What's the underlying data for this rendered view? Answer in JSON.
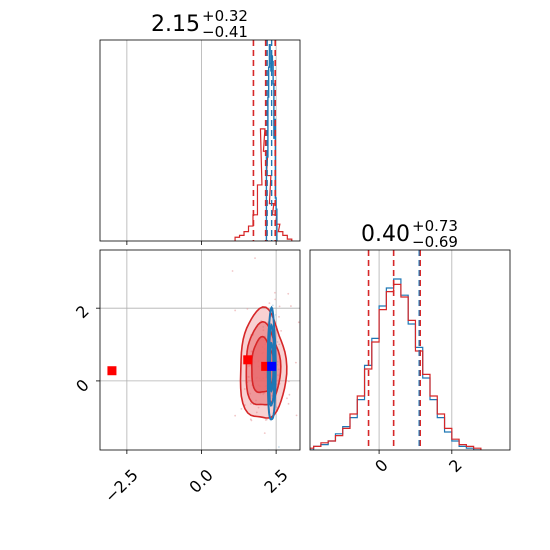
{
  "chart_data": {
    "type": "corner",
    "parameters": [
      {
        "title_main": "2.15",
        "title_plus": "+0.32",
        "title_minus": "−0.41",
        "range": [
          -3.4,
          3.3
        ],
        "ticks": [
          -2.5,
          0.0,
          2.5
        ],
        "tick_labels": [
          "−2.5",
          "0.0",
          "2.5"
        ],
        "quantile_lines": [
          1.74,
          2.15,
          2.47
        ],
        "blue_quantile_lines": [
          2.2,
          2.35
        ]
      },
      {
        "title_main": "0.40",
        "title_plus": "+0.73",
        "title_minus": "−0.69",
        "range": [
          -1.9,
          3.6
        ],
        "ticks": [
          0,
          2
        ],
        "tick_labels": [
          "0",
          "2"
        ],
        "quantile_lines": [
          -0.29,
          0.4,
          1.13
        ],
        "blue_quantile_lines": [
          1.1
        ]
      }
    ],
    "marginal_1": {
      "red_bins_x": [
        1.2,
        1.35,
        1.5,
        1.65,
        1.8,
        1.95,
        2.05,
        2.15,
        2.25,
        2.35,
        2.45,
        2.55,
        2.65,
        2.8,
        2.95
      ],
      "red_bins_h": [
        0.02,
        0.03,
        0.05,
        0.08,
        0.14,
        0.3,
        0.6,
        0.48,
        0.35,
        0.2,
        0.14,
        0.09,
        0.05,
        0.03,
        0.01
      ],
      "blue_peak_x": [
        2.2,
        2.25,
        2.3,
        2.35,
        2.4,
        2.45,
        2.5
      ],
      "blue_peak_h": [
        0.45,
        0.85,
        1.0,
        0.95,
        0.9,
        0.6,
        0.2
      ]
    },
    "marginal_2": {
      "x": [
        -1.9,
        -1.7,
        -1.5,
        -1.3,
        -1.1,
        -0.9,
        -0.7,
        -0.5,
        -0.3,
        -0.1,
        0.1,
        0.3,
        0.5,
        0.7,
        0.9,
        1.1,
        1.3,
        1.5,
        1.7,
        1.9,
        2.1,
        2.3,
        2.5,
        2.7
      ],
      "red_h": [
        0.01,
        0.02,
        0.04,
        0.05,
        0.08,
        0.12,
        0.2,
        0.3,
        0.45,
        0.6,
        0.78,
        0.88,
        0.92,
        0.85,
        0.72,
        0.55,
        0.42,
        0.3,
        0.2,
        0.12,
        0.06,
        0.03,
        0.02,
        0.01
      ],
      "blue_h": [
        0.0,
        0.02,
        0.03,
        0.05,
        0.09,
        0.13,
        0.18,
        0.28,
        0.47,
        0.62,
        0.8,
        0.9,
        0.95,
        0.86,
        0.7,
        0.57,
        0.4,
        0.28,
        0.18,
        0.1,
        0.05,
        0.02,
        0.01,
        0.0
      ]
    },
    "joint": {
      "red_center": [
        2.05,
        0.4
      ],
      "red_spread": [
        0.35,
        0.75
      ],
      "blue_center": [
        2.35,
        0.4
      ],
      "blue_spread": [
        0.07,
        0.85
      ],
      "red_markers": [
        [
          -3.0,
          0.28
        ],
        [
          1.55,
          0.58
        ],
        [
          2.15,
          0.4
        ]
      ],
      "blue_marker": [
        2.35,
        0.4
      ]
    },
    "colors": {
      "red": "#d62728",
      "red_fill": "#e8686a",
      "blue": "#1f77b4",
      "quantile_red": "#d62728",
      "marker_red": "#ff0000",
      "marker_blue": "#0000ff",
      "grid": "#b0b0b0"
    }
  }
}
